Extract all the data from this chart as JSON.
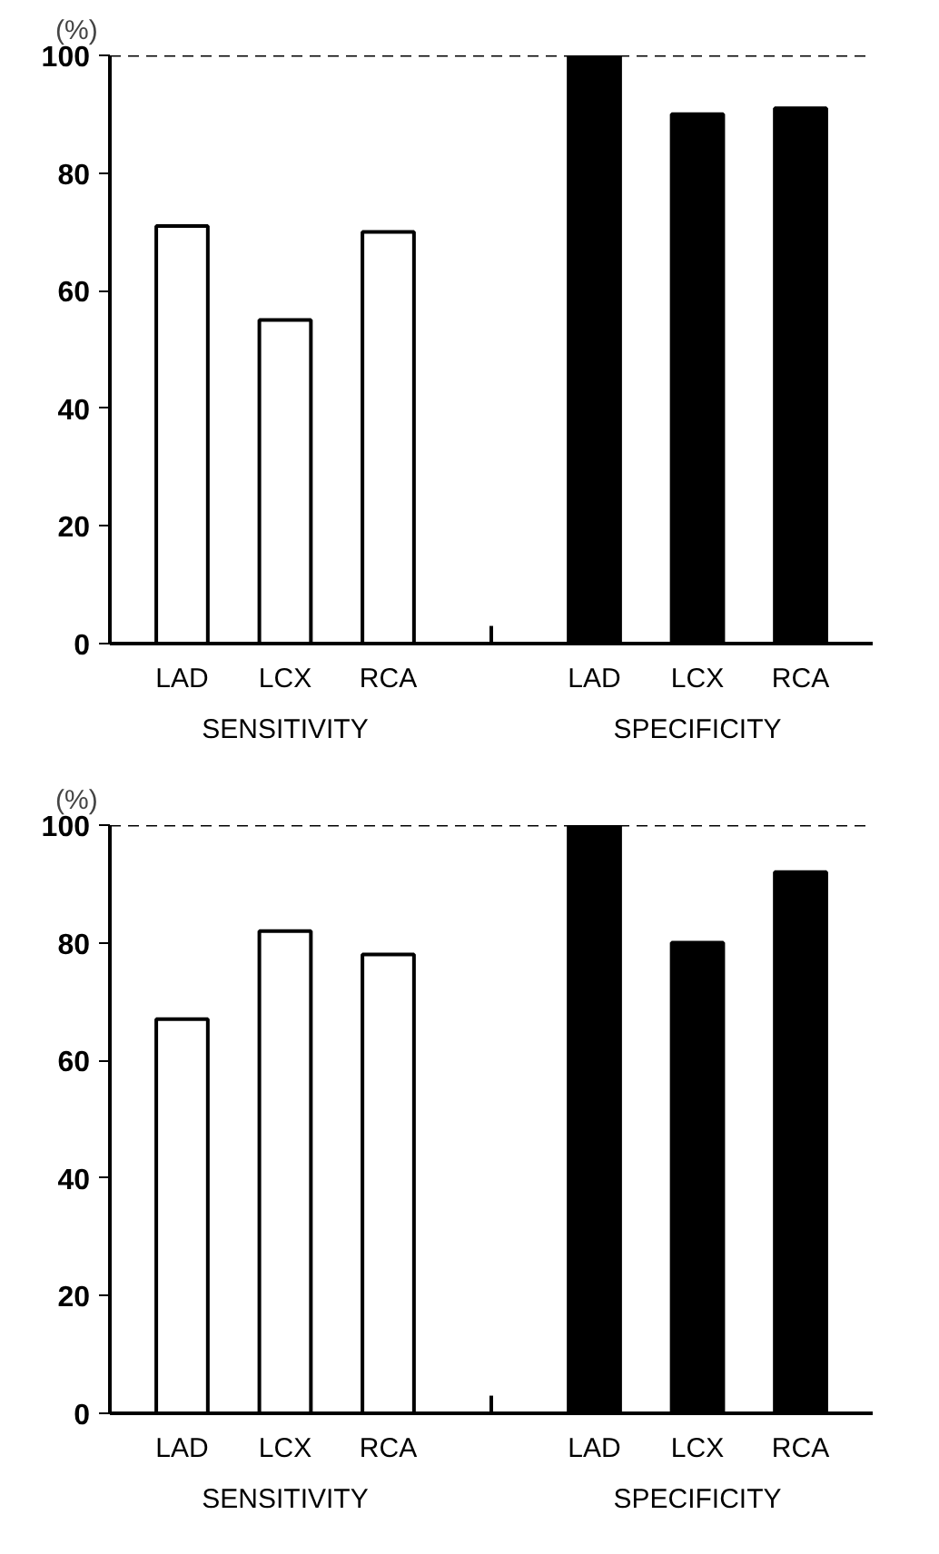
{
  "chart_data": [
    {
      "type": "bar",
      "ylabel": "(%)",
      "categories": [
        "LAD",
        "LCX",
        "RCA",
        null,
        "LAD",
        "LCX",
        "RCA"
      ],
      "series": [
        {
          "color": "#ffffff",
          "values": [
            71,
            55,
            70,
            null,
            null,
            null,
            null
          ]
        },
        {
          "color": "#000000",
          "values": [
            null,
            null,
            null,
            null,
            100,
            90,
            91
          ]
        }
      ],
      "ylim": [
        0,
        100
      ],
      "yticks": [
        0,
        20,
        40,
        60,
        80,
        100
      ],
      "grid": false,
      "ref_lines": [
        {
          "axis": "y",
          "value": 100,
          "line_style": "dashed",
          "color": "#000000"
        }
      ],
      "annotations": [
        "SENSITIVITY",
        "SPECIFICITY"
      ]
    },
    {
      "type": "bar",
      "ylabel": "(%)",
      "categories": [
        "LAD",
        "LCX",
        "RCA",
        null,
        "LAD",
        "LCX",
        "RCA"
      ],
      "series": [
        {
          "color": "#ffffff",
          "values": [
            67,
            82,
            78,
            null,
            null,
            null,
            null
          ]
        },
        {
          "color": "#000000",
          "values": [
            null,
            null,
            null,
            null,
            100,
            80,
            92
          ]
        }
      ],
      "ylim": [
        0,
        100
      ],
      "yticks": [
        0,
        20,
        40,
        60,
        80,
        100
      ],
      "grid": false,
      "ref_lines": [
        {
          "axis": "y",
          "value": 100,
          "line_style": "dashed",
          "color": "#000000"
        }
      ],
      "annotations": [
        "SENSITIVITY",
        "SPECIFICITY"
      ]
    }
  ]
}
